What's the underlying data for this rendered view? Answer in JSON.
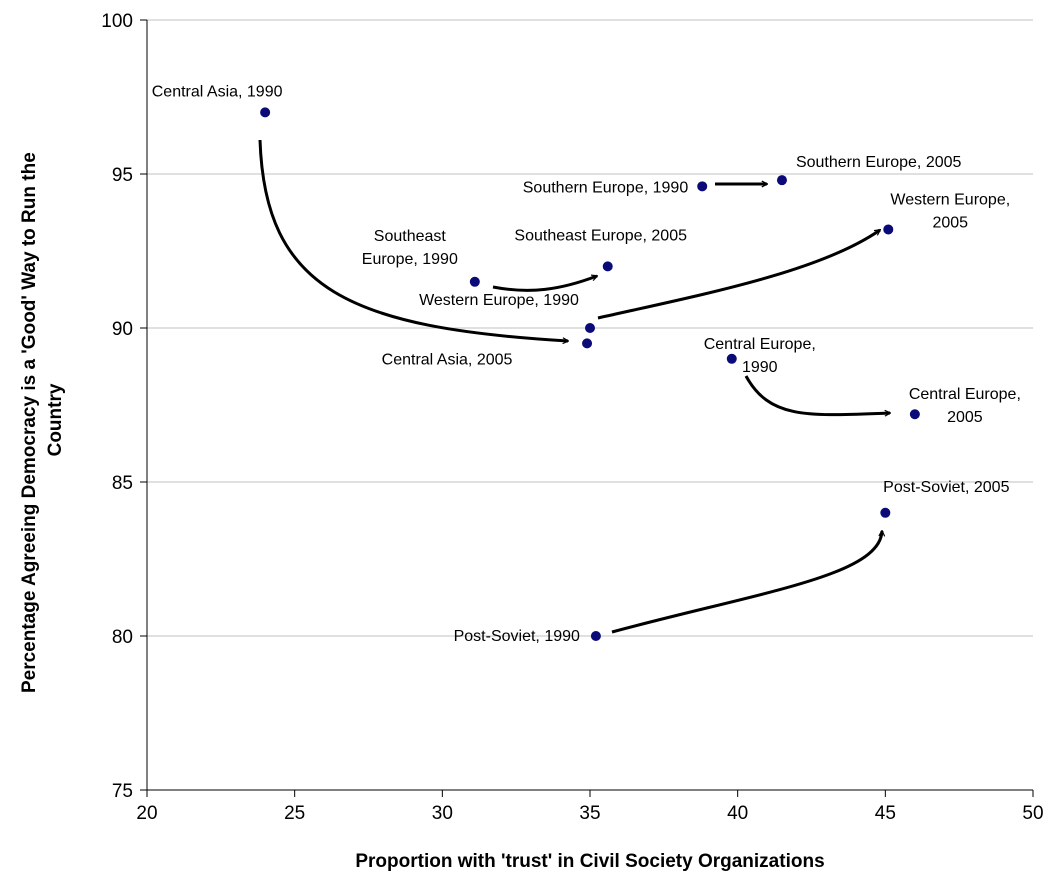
{
  "chart_data": {
    "type": "scatter",
    "xlabel": "Proportion with 'trust' in Civil Society Organizations",
    "ylabel": "Percentage Agreeing Democracy is a 'Good' Way to Run the Country",
    "xlim": [
      20,
      50
    ],
    "ylim": [
      75,
      100
    ],
    "xticks": [
      20,
      25,
      30,
      35,
      40,
      45,
      50
    ],
    "yticks": [
      75,
      80,
      85,
      90,
      95,
      100
    ],
    "grid": "horizontal",
    "colors": {
      "point": "#0a0a78",
      "arrow": "#000000",
      "grid": "#c0c0c0"
    },
    "points": [
      {
        "id": "ca90",
        "label": [
          "Central Asia, 1990"
        ],
        "x": 24.0,
        "y": 97.0
      },
      {
        "id": "ca05",
        "label": [
          "Central Asia, 2005"
        ],
        "x": 34.9,
        "y": 89.5
      },
      {
        "id": "se90",
        "label": [
          "Southeast",
          "Europe, 1990"
        ],
        "x": 31.1,
        "y": 91.5
      },
      {
        "id": "se05",
        "label": [
          "Southeast Europe, 2005"
        ],
        "x": 35.6,
        "y": 92.0
      },
      {
        "id": "so90",
        "label": [
          "Southern Europe, 1990"
        ],
        "x": 38.8,
        "y": 94.6
      },
      {
        "id": "so05",
        "label": [
          "Southern Europe, 2005"
        ],
        "x": 41.5,
        "y": 94.8
      },
      {
        "id": "we90",
        "label": [
          "Western Europe, 1990"
        ],
        "x": 35.0,
        "y": 90.0
      },
      {
        "id": "we05",
        "label": [
          "Western Europe,",
          "2005"
        ],
        "x": 45.1,
        "y": 93.2
      },
      {
        "id": "ce90",
        "label": [
          "Central Europe,",
          "1990"
        ],
        "x": 39.8,
        "y": 89.0
      },
      {
        "id": "ce05",
        "label": [
          "Central Europe,",
          "2005"
        ],
        "x": 46.0,
        "y": 87.2
      },
      {
        "id": "ps90",
        "label": [
          "Post-Soviet, 1990"
        ],
        "x": 35.2,
        "y": 80.0
      },
      {
        "id": "ps05",
        "label": [
          "Post-Soviet, 2005"
        ],
        "x": 45.0,
        "y": 84.0
      }
    ],
    "arrows": [
      {
        "from": "ca90",
        "to": "ca05"
      },
      {
        "from": "se90",
        "to": "se05"
      },
      {
        "from": "so90",
        "to": "so05"
      },
      {
        "from": "we90",
        "to": "we05"
      },
      {
        "from": "ce90",
        "to": "ce05"
      },
      {
        "from": "ps90",
        "to": "ps05"
      }
    ]
  }
}
